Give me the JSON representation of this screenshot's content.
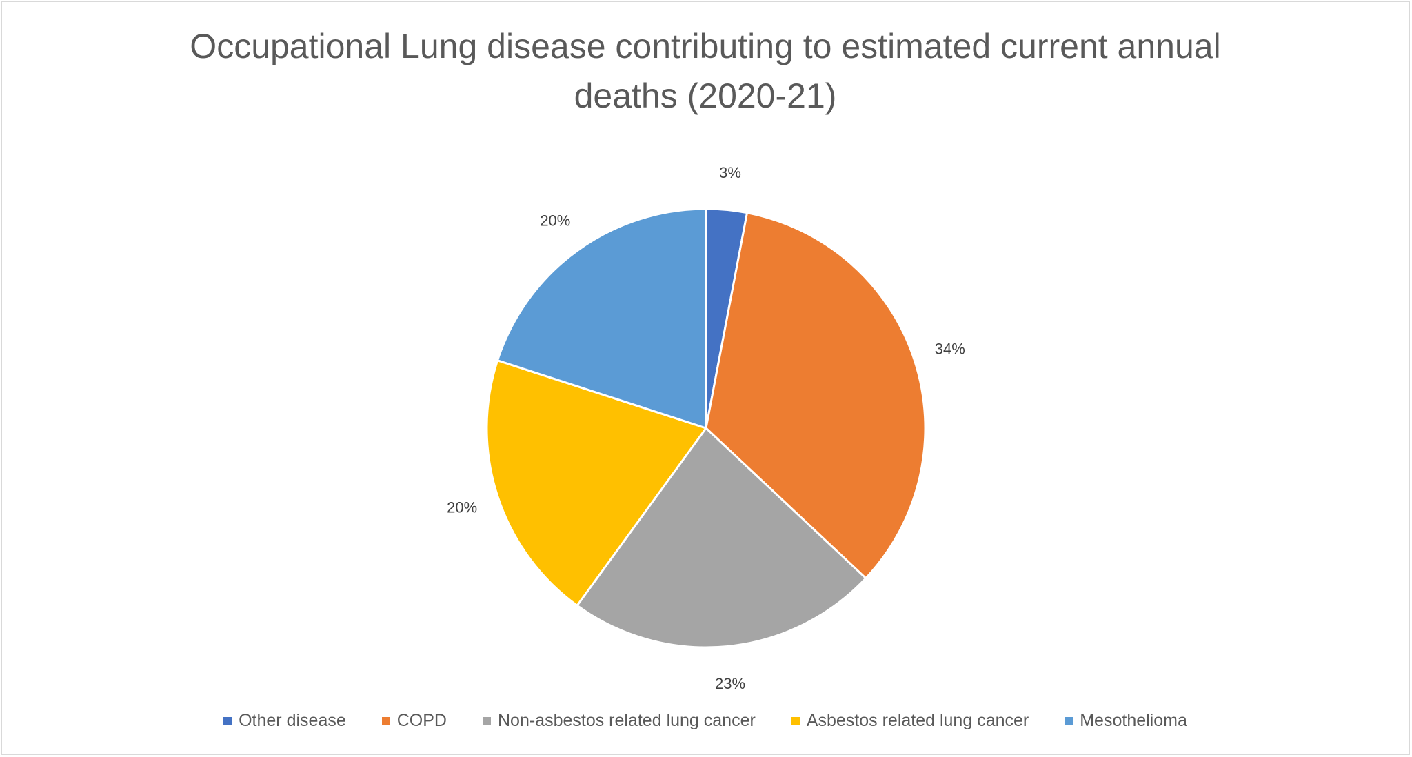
{
  "chart_data": {
    "type": "pie",
    "title_lines": [
      "Occupational Lung disease contributing to estimated current annual",
      "deaths (2020-21)"
    ],
    "slices": [
      {
        "label": "Other disease",
        "value": 3,
        "data_label": "3%",
        "color": "#4472c4"
      },
      {
        "label": "COPD",
        "value": 34,
        "data_label": "34%",
        "color": "#ed7d31"
      },
      {
        "label": "Non-asbestos related lung cancer",
        "value": 23,
        "data_label": "23%",
        "color": "#a5a5a5"
      },
      {
        "label": "Asbestos related lung cancer",
        "value": 20,
        "data_label": "20%",
        "color": "#ffc000"
      },
      {
        "label": "Mesothelioma",
        "value": 20,
        "data_label": "20%",
        "color": "#5b9bd5"
      }
    ],
    "start_angle": "top",
    "direction": "clockwise",
    "legend_position": "bottom"
  }
}
